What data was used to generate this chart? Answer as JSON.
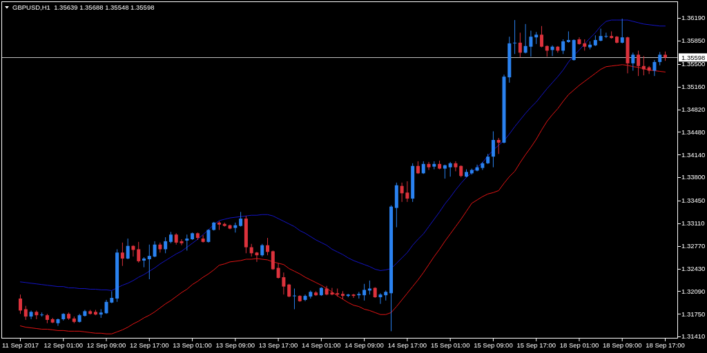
{
  "chart_data": {
    "type": "candlestick",
    "title": "GBPUSD,H1  1.35639 1.35688 1.35548 1.35598",
    "categories": [
      "11 Sep 2017",
      null,
      null,
      null,
      null,
      null,
      null,
      null,
      "12 Sep 01:00",
      null,
      null,
      null,
      null,
      null,
      null,
      null,
      "12 Sep 09:00",
      null,
      null,
      null,
      null,
      null,
      null,
      null,
      "12 Sep 17:00",
      null,
      null,
      null,
      null,
      null,
      null,
      null,
      "13 Sep 01:00",
      null,
      null,
      null,
      null,
      null,
      null,
      null,
      "13 Sep 09:00",
      null,
      null,
      null,
      null,
      null,
      null,
      null,
      "13 Sep 17:00",
      null,
      null,
      null,
      null,
      null,
      null,
      null,
      "14 Sep 01:00",
      null,
      null,
      null,
      null,
      null,
      null,
      null,
      "14 Sep 09:00",
      null,
      null,
      null,
      null,
      null,
      null,
      null,
      "14 Sep 17:00",
      null,
      null,
      null,
      null,
      null,
      null,
      null,
      "15 Sep 01:00",
      null,
      null,
      null,
      null,
      null,
      null,
      null,
      "15 Sep 09:00",
      null,
      null,
      null,
      null,
      null,
      null,
      null,
      "15 Sep 17:00",
      null,
      null,
      null,
      null,
      null,
      null,
      null,
      "18 Sep 01:00",
      null,
      null,
      null,
      null,
      null,
      null,
      null,
      "18 Sep 09:00",
      null,
      null,
      null,
      null,
      null,
      null,
      null,
      "18 Sep 17:00"
    ],
    "ohlc": [
      [
        1.3198,
        1.3204,
        1.3175,
        1.318
      ],
      [
        1.3182,
        1.3187,
        1.3166,
        1.3171
      ],
      [
        1.3171,
        1.318,
        1.3167,
        1.3178
      ],
      [
        1.3178,
        1.318,
        1.3167,
        1.3173
      ],
      [
        1.3173,
        1.3177,
        1.3171,
        1.3174
      ],
      [
        1.3173,
        1.3175,
        1.3161,
        1.3166
      ],
      [
        1.3167,
        1.3169,
        1.3161,
        1.3162
      ],
      [
        1.3161,
        1.3168,
        1.3157,
        1.3167
      ],
      [
        1.3167,
        1.3176,
        1.3165,
        1.3175
      ],
      [
        1.3175,
        1.3177,
        1.3166,
        1.3168
      ],
      [
        1.3168,
        1.3171,
        1.3161,
        1.3163
      ],
      [
        1.3163,
        1.3175,
        1.3162,
        1.3173
      ],
      [
        1.3172,
        1.3181,
        1.3171,
        1.3179
      ],
      [
        1.3179,
        1.3181,
        1.3174,
        1.3175
      ],
      [
        1.3178,
        1.3181,
        1.3173,
        1.3174
      ],
      [
        1.3174,
        1.3182,
        1.3169,
        1.3177
      ],
      [
        1.3176,
        1.3196,
        1.3175,
        1.3193
      ],
      [
        1.3192,
        1.3209,
        1.3191,
        1.3199
      ],
      [
        1.3198,
        1.3272,
        1.3193,
        1.3267
      ],
      [
        1.3267,
        1.3282,
        1.3247,
        1.3258
      ],
      [
        1.3258,
        1.3288,
        1.3257,
        1.3277
      ],
      [
        1.3277,
        1.3278,
        1.3261,
        1.3271
      ],
      [
        1.3272,
        1.3283,
        1.3252,
        1.3254
      ],
      [
        1.3255,
        1.326,
        1.3245,
        1.3258
      ],
      [
        1.3257,
        1.3279,
        1.3227,
        1.3262
      ],
      [
        1.3261,
        1.3284,
        1.326,
        1.3279
      ],
      [
        1.3279,
        1.3282,
        1.3267,
        1.3272
      ],
      [
        1.3272,
        1.329,
        1.3266,
        1.3284
      ],
      [
        1.3283,
        1.3298,
        1.3281,
        1.3294
      ],
      [
        1.3294,
        1.3296,
        1.3279,
        1.3282
      ],
      [
        1.3284,
        1.3287,
        1.3278,
        1.3281
      ],
      [
        1.3285,
        1.3294,
        1.327,
        1.3288
      ],
      [
        1.3287,
        1.3297,
        1.3286,
        1.3296
      ],
      [
        1.3296,
        1.3297,
        1.3286,
        1.3289
      ],
      [
        1.3288,
        1.3293,
        1.3282,
        1.3283
      ],
      [
        1.3283,
        1.3302,
        1.3282,
        1.3301
      ],
      [
        1.3301,
        1.3313,
        1.33,
        1.3312
      ],
      [
        1.3312,
        1.3314,
        1.3301,
        1.3309
      ],
      [
        1.331,
        1.3312,
        1.3306,
        1.3307
      ],
      [
        1.3308,
        1.3309,
        1.3302,
        1.3303
      ],
      [
        1.3304,
        1.3312,
        1.3297,
        1.3308
      ],
      [
        1.3307,
        1.3328,
        1.3306,
        1.3318
      ],
      [
        1.3318,
        1.3322,
        1.3266,
        1.3275
      ],
      [
        1.3275,
        1.328,
        1.3261,
        1.3266
      ],
      [
        1.3267,
        1.3268,
        1.3253,
        1.3263
      ],
      [
        1.3263,
        1.328,
        1.3261,
        1.3278
      ],
      [
        1.3278,
        1.3289,
        1.3263,
        1.3268
      ],
      [
        1.3269,
        1.327,
        1.3241,
        1.3242
      ],
      [
        1.3244,
        1.3251,
        1.3228,
        1.3229
      ],
      [
        1.323,
        1.3237,
        1.3204,
        1.3216
      ],
      [
        1.3219,
        1.322,
        1.32,
        1.3201
      ],
      [
        1.3202,
        1.3213,
        1.3182,
        1.3202
      ],
      [
        1.3202,
        1.3203,
        1.3193,
        1.3194
      ],
      [
        1.3196,
        1.3204,
        1.3194,
        1.3202
      ],
      [
        1.3201,
        1.321,
        1.3198,
        1.3208
      ],
      [
        1.3207,
        1.3209,
        1.3202,
        1.3203
      ],
      [
        1.3203,
        1.3215,
        1.3202,
        1.3214
      ],
      [
        1.3213,
        1.3217,
        1.3203,
        1.3204
      ],
      [
        1.3207,
        1.3214,
        1.3203,
        1.3204
      ],
      [
        1.3206,
        1.3213,
        1.3201,
        1.3204
      ],
      [
        1.3205,
        1.3209,
        1.3197,
        1.3202
      ],
      [
        1.3202,
        1.3205,
        1.32,
        1.3204
      ],
      [
        1.3204,
        1.3205,
        1.3199,
        1.3202
      ],
      [
        1.3203,
        1.3208,
        1.3198,
        1.3205
      ],
      [
        1.3203,
        1.322,
        1.3195,
        1.3211
      ],
      [
        1.321,
        1.3225,
        1.3204,
        1.3213
      ],
      [
        1.3214,
        1.3215,
        1.3199,
        1.32
      ],
      [
        1.32,
        1.3206,
        1.319,
        1.3204
      ],
      [
        1.3203,
        1.321,
        1.3195,
        1.3208
      ],
      [
        1.3206,
        1.3338,
        1.3149,
        1.3336
      ],
      [
        1.3334,
        1.3372,
        1.3305,
        1.3368
      ],
      [
        1.3367,
        1.3372,
        1.3343,
        1.3356
      ],
      [
        1.3357,
        1.3374,
        1.3343,
        1.3348
      ],
      [
        1.3348,
        1.3401,
        1.3343,
        1.3397
      ],
      [
        1.3397,
        1.3404,
        1.3385,
        1.3386
      ],
      [
        1.3386,
        1.3404,
        1.3385,
        1.34
      ],
      [
        1.34,
        1.3403,
        1.3391,
        1.3395
      ],
      [
        1.3396,
        1.3404,
        1.3392,
        1.34
      ],
      [
        1.34,
        1.3405,
        1.3392,
        1.3393
      ],
      [
        1.3393,
        1.3399,
        1.3378,
        1.3398
      ],
      [
        1.3395,
        1.3403,
        1.3381,
        1.3401
      ],
      [
        1.3401,
        1.3404,
        1.3389,
        1.3395
      ],
      [
        1.3397,
        1.3398,
        1.338,
        1.3382
      ],
      [
        1.3381,
        1.3392,
        1.338,
        1.3388
      ],
      [
        1.3386,
        1.3393,
        1.3384,
        1.3391
      ],
      [
        1.339,
        1.3399,
        1.3389,
        1.3395
      ],
      [
        1.3394,
        1.3403,
        1.3391,
        1.3401
      ],
      [
        1.3401,
        1.3415,
        1.34,
        1.3411
      ],
      [
        1.3411,
        1.3449,
        1.3395,
        1.3436
      ],
      [
        1.3436,
        1.3439,
        1.3415,
        1.3432
      ],
      [
        1.3432,
        1.3534,
        1.3431,
        1.3531
      ],
      [
        1.353,
        1.3591,
        1.3522,
        1.3581
      ],
      [
        1.3581,
        1.3616,
        1.3565,
        1.3582
      ],
      [
        1.3582,
        1.3597,
        1.356,
        1.3567
      ],
      [
        1.3567,
        1.361,
        1.3566,
        1.3577
      ],
      [
        1.3576,
        1.36,
        1.3561,
        1.3591
      ],
      [
        1.359,
        1.3598,
        1.358,
        1.3594
      ],
      [
        1.3594,
        1.3607,
        1.3575,
        1.3576
      ],
      [
        1.3577,
        1.3578,
        1.3561,
        1.357
      ],
      [
        1.3571,
        1.3578,
        1.3562,
        1.3576
      ],
      [
        1.3576,
        1.3577,
        1.3567,
        1.357
      ],
      [
        1.357,
        1.3587,
        1.3565,
        1.3584
      ],
      [
        1.3583,
        1.3599,
        1.3582,
        1.3586
      ],
      [
        1.3556,
        1.3587,
        1.3555,
        1.3586
      ],
      [
        1.3587,
        1.359,
        1.3579,
        1.358
      ],
      [
        1.3581,
        1.3587,
        1.357,
        1.3576
      ],
      [
        1.3575,
        1.3584,
        1.3572,
        1.3579
      ],
      [
        1.3578,
        1.3593,
        1.3577,
        1.3586
      ],
      [
        1.3585,
        1.3603,
        1.3584,
        1.3592
      ],
      [
        1.3591,
        1.3597,
        1.3589,
        1.3592
      ],
      [
        1.3592,
        1.3599,
        1.3588,
        1.3589
      ],
      [
        1.3591,
        1.3592,
        1.3581,
        1.3582
      ],
      [
        1.3582,
        1.3618,
        1.3581,
        1.359
      ],
      [
        1.359,
        1.3591,
        1.3536,
        1.3551
      ],
      [
        1.3551,
        1.3567,
        1.354,
        1.3564
      ],
      [
        1.3564,
        1.357,
        1.3532,
        1.3547
      ],
      [
        1.3547,
        1.3562,
        1.3533,
        1.3542
      ],
      [
        1.3545,
        1.3547,
        1.3535,
        1.354
      ],
      [
        1.354,
        1.3556,
        1.3532,
        1.3553
      ],
      [
        1.3553,
        1.3568,
        1.3548,
        1.3564
      ],
      [
        1.35639,
        1.35688,
        1.35548,
        1.35598
      ]
    ],
    "colors": [
      "#dc323c",
      "#dc323c",
      "#2a82f0",
      "#dc323c",
      "#2a82f0",
      "#dc323c",
      "#dc323c",
      "#2a82f0",
      "#2a82f0",
      "#dc323c",
      "#dc323c",
      "#2a82f0",
      "#2a82f0",
      "#dc323c",
      "#dc323c",
      "#2a82f0",
      "#2a82f0",
      "#2a82f0",
      "#2a82f0",
      "#dc323c",
      "#2a82f0",
      "#dc323c",
      "#dc323c",
      "#2a82f0",
      "#2a82f0",
      "#2a82f0",
      "#dc323c",
      "#2a82f0",
      "#2a82f0",
      "#dc323c",
      "#dc323c",
      "#2a82f0",
      "#2a82f0",
      "#dc323c",
      "#dc323c",
      "#2a82f0",
      "#2a82f0",
      "#dc323c",
      "#dc323c",
      "#dc323c",
      "#2a82f0",
      "#2a82f0",
      "#dc323c",
      "#dc323c",
      "#dc323c",
      "#2a82f0",
      "#dc323c",
      "#dc323c",
      "#dc323c",
      "#dc323c",
      "#dc323c",
      "#2a82f0",
      "#dc323c",
      "#2a82f0",
      "#2a82f0",
      "#dc323c",
      "#2a82f0",
      "#dc323c",
      "#dc323c",
      "#dc323c",
      "#dc323c",
      "#2a82f0",
      "#dc323c",
      "#2a82f0",
      "#2a82f0",
      "#2a82f0",
      "#dc323c",
      "#2a82f0",
      "#2a82f0",
      "#2a82f0",
      "#2a82f0",
      "#dc323c",
      "#dc323c",
      "#2a82f0",
      "#dc323c",
      "#2a82f0",
      "#dc323c",
      "#2a82f0",
      "#dc323c",
      "#2a82f0",
      "#2a82f0",
      "#dc323c",
      "#dc323c",
      "#2a82f0",
      "#2a82f0",
      "#2a82f0",
      "#2a82f0",
      "#2a82f0",
      "#2a82f0",
      "#dc323c",
      "#2a82f0",
      "#2a82f0",
      "#2a82f0",
      "#dc323c",
      "#2a82f0",
      "#2a82f0",
      "#2a82f0",
      "#dc323c",
      "#dc323c",
      "#2a82f0",
      "#dc323c",
      "#2a82f0",
      "#2a82f0",
      "#2a82f0",
      "#dc323c",
      "#dc323c",
      "#2a82f0",
      "#2a82f0",
      "#2a82f0",
      "#2a82f0",
      "#dc323c",
      "#dc323c",
      "#2a82f0",
      "#dc323c",
      "#2a82f0",
      "#dc323c",
      "#dc323c",
      "#dc323c",
      "#2a82f0",
      "#2a82f0",
      "#dc323c"
    ],
    "series": [
      {
        "type": "line",
        "color": "#1414c8",
        "values": [
          1.3223,
          1.3222,
          1.3221,
          1.322,
          1.3219,
          1.3218,
          1.3217,
          1.3216,
          1.3216,
          1.3214,
          1.3214,
          1.3213,
          1.3213,
          1.3212,
          1.3212,
          1.3211,
          1.3211,
          1.321,
          1.3214,
          1.3218,
          1.3221,
          1.3225,
          1.323,
          1.3234,
          1.3239,
          1.3244,
          1.325,
          1.3255,
          1.326,
          1.3265,
          1.3269,
          1.3275,
          1.3281,
          1.3287,
          1.3294,
          1.3301,
          1.3309,
          1.3315,
          1.3317,
          1.3319,
          1.332,
          1.3321,
          1.3322,
          1.3323,
          1.3323,
          1.3324,
          1.3324,
          1.3322,
          1.3318,
          1.3314,
          1.331,
          1.3306,
          1.33,
          1.3296,
          1.3291,
          1.3286,
          1.3282,
          1.3278,
          1.3272,
          1.3268,
          1.3264,
          1.3259,
          1.3255,
          1.3252,
          1.3249,
          1.3246,
          1.3242,
          1.324,
          1.3241,
          1.3243,
          1.3251,
          1.3259,
          1.3267,
          1.3278,
          1.3287,
          1.3295,
          1.3306,
          1.3317,
          1.3328,
          1.334,
          1.335,
          1.3361,
          1.3371,
          1.338,
          1.3387,
          1.3395,
          1.3402,
          1.3412,
          1.3421,
          1.3428,
          1.3435,
          1.3445,
          1.3456,
          1.3466,
          1.3476,
          1.3485,
          1.3493,
          1.3503,
          1.3513,
          1.3522,
          1.3531,
          1.3541,
          1.3553,
          1.3563,
          1.3571,
          1.358,
          1.3589,
          1.3597,
          1.3607,
          1.3614,
          1.3616,
          1.3616,
          1.3616,
          1.3616,
          1.3614,
          1.3612,
          1.361,
          1.3609,
          1.3608,
          1.3607,
          1.3607
        ]
      },
      {
        "type": "line",
        "color": "#e61414",
        "values": [
          1.3157,
          1.3155,
          1.3154,
          1.3153,
          1.3152,
          1.3152,
          1.3151,
          1.315,
          1.315,
          1.3149,
          1.3149,
          1.3149,
          1.3148,
          1.3147,
          1.3146,
          1.3146,
          1.3145,
          1.3145,
          1.3148,
          1.3151,
          1.3155,
          1.316,
          1.3164,
          1.3169,
          1.3173,
          1.3178,
          1.3184,
          1.319,
          1.3195,
          1.3201,
          1.3207,
          1.3212,
          1.3219,
          1.3224,
          1.323,
          1.3235,
          1.3241,
          1.3248,
          1.325,
          1.3253,
          1.3254,
          1.3255,
          1.3257,
          1.3257,
          1.3258,
          1.3257,
          1.3256,
          1.3253,
          1.3251,
          1.3249,
          1.3243,
          1.3239,
          1.3235,
          1.323,
          1.3226,
          1.3222,
          1.3218,
          1.3213,
          1.3208,
          1.3202,
          1.3197,
          1.3192,
          1.3188,
          1.3186,
          1.3182,
          1.318,
          1.3177,
          1.3174,
          1.3174,
          1.3177,
          1.3186,
          1.3196,
          1.3206,
          1.3216,
          1.3226,
          1.3237,
          1.3249,
          1.3261,
          1.3272,
          1.3284,
          1.3295,
          1.3306,
          1.3317,
          1.3329,
          1.3341,
          1.3346,
          1.3351,
          1.3355,
          1.3357,
          1.336,
          1.3371,
          1.3381,
          1.3389,
          1.3402,
          1.3414,
          1.3425,
          1.3437,
          1.3451,
          1.3464,
          1.3474,
          1.3483,
          1.3494,
          1.3504,
          1.3511,
          1.3518,
          1.3524,
          1.353,
          1.3536,
          1.3542,
          1.3546,
          1.3547,
          1.3548,
          1.3549,
          1.3548,
          1.3546,
          1.3545,
          1.3543,
          1.3541,
          1.354,
          1.3539,
          1.3538
        ]
      }
    ],
    "ylim": [
      1.3138,
      1.3644
    ],
    "yticks": [
      {
        "value": 1.3619,
        "label": "1.36190"
      },
      {
        "value": 1.3585,
        "label": "1.35850"
      },
      {
        "value": 1.355,
        "label": "1.35500"
      },
      {
        "value": 1.3516,
        "label": "1.35160"
      },
      {
        "value": 1.3482,
        "label": "1.34820"
      },
      {
        "value": 1.3448,
        "label": "1.34480"
      },
      {
        "value": 1.3414,
        "label": "1.34140"
      },
      {
        "value": 1.338,
        "label": "1.33800"
      },
      {
        "value": 1.3345,
        "label": "1.33450"
      },
      {
        "value": 1.3311,
        "label": "1.33110"
      },
      {
        "value": 1.3277,
        "label": "1.32770"
      },
      {
        "value": 1.3243,
        "label": "1.32430"
      },
      {
        "value": 1.3209,
        "label": "1.32090"
      },
      {
        "value": 1.3175,
        "label": "1.31750"
      },
      {
        "value": 1.3141,
        "label": "1.31410"
      }
    ],
    "ref_lines": [
      {
        "axis": "y",
        "value": 1.35598,
        "label": "1.35598",
        "color": "#c0c0c0"
      }
    ]
  }
}
